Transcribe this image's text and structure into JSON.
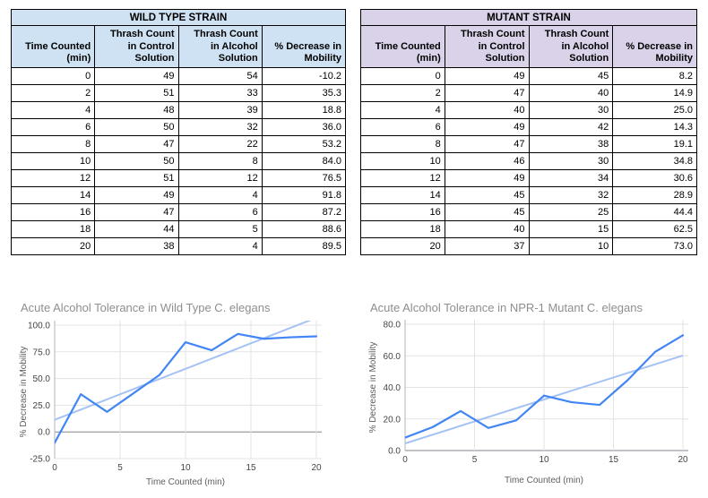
{
  "tables": [
    {
      "title": "WILD TYPE STRAIN",
      "accent_bg": "#cfe2f3",
      "columns": [
        "Time Counted\n(min)",
        "Thrash Count\nin Control\nSolution",
        "Thrash Count\nin Alcohol\nSolution",
        "% Decrease in\nMobility"
      ],
      "rows": [
        [
          "0",
          "49",
          "54",
          "-10.2"
        ],
        [
          "2",
          "51",
          "33",
          "35.3"
        ],
        [
          "4",
          "48",
          "39",
          "18.8"
        ],
        [
          "6",
          "50",
          "32",
          "36.0"
        ],
        [
          "8",
          "47",
          "22",
          "53.2"
        ],
        [
          "10",
          "50",
          "8",
          "84.0"
        ],
        [
          "12",
          "51",
          "12",
          "76.5"
        ],
        [
          "14",
          "49",
          "4",
          "91.8"
        ],
        [
          "16",
          "47",
          "6",
          "87.2"
        ],
        [
          "18",
          "44",
          "5",
          "88.6"
        ],
        [
          "20",
          "38",
          "4",
          "89.5"
        ]
      ]
    },
    {
      "title": "MUTANT STRAIN",
      "accent_bg": "#d9d2e9",
      "columns": [
        "Time Counted\n(min)",
        "Thrash Count\nin Control\nSolution",
        "Thrash Count\nin Alcohol\nSolution",
        "% Decrease in\nMobility"
      ],
      "rows": [
        [
          "0",
          "49",
          "45",
          "8.2"
        ],
        [
          "2",
          "47",
          "40",
          "14.9"
        ],
        [
          "4",
          "40",
          "30",
          "25.0"
        ],
        [
          "6",
          "49",
          "42",
          "14.3"
        ],
        [
          "8",
          "47",
          "38",
          "19.1"
        ],
        [
          "10",
          "46",
          "30",
          "34.8"
        ],
        [
          "12",
          "49",
          "34",
          "30.6"
        ],
        [
          "14",
          "45",
          "32",
          "28.9"
        ],
        [
          "16",
          "45",
          "25",
          "44.4"
        ],
        [
          "18",
          "40",
          "15",
          "62.5"
        ],
        [
          "20",
          "37",
          "10",
          "73.0"
        ]
      ]
    }
  ],
  "chart_data": [
    {
      "type": "line",
      "title": "Acute Alcohol Tolerance in Wild Type C. elegans",
      "xlabel": "Time Counted (min)",
      "ylabel": "% Decrease in Mobility",
      "x": [
        0,
        2,
        4,
        6,
        8,
        10,
        12,
        14,
        16,
        18,
        20
      ],
      "series": [
        {
          "name": "% Decrease in Mobility",
          "values": [
            -10.2,
            35.3,
            18.8,
            36.0,
            53.2,
            84.0,
            76.5,
            91.8,
            87.2,
            88.6,
            89.5
          ]
        }
      ],
      "trendline": {
        "x": [
          0,
          20
        ],
        "y": [
          11.3,
          106.9
        ]
      },
      "xlim": [
        0,
        20
      ],
      "ylim": [
        -25,
        100
      ],
      "xticks": [
        "0",
        "5",
        "10",
        "15",
        "20"
      ],
      "yticks": [
        "-25.0",
        "0.0",
        "25.0",
        "50.0",
        "75.0",
        "100.0"
      ],
      "baseline": 0,
      "grid": true,
      "legend": "none",
      "series_color": "#4285f4",
      "trend_color": "#a4c2f4"
    },
    {
      "type": "line",
      "title": "Acute Alcohol Tolerance in NPR-1 Mutant C. elegans",
      "xlabel": "Time Counted (min)",
      "ylabel": "% Decrease in Mobility",
      "x": [
        0,
        2,
        4,
        6,
        8,
        10,
        12,
        14,
        16,
        18,
        20
      ],
      "series": [
        {
          "name": "% Decrease in Mobility",
          "values": [
            8.2,
            14.9,
            25.0,
            14.3,
            19.1,
            34.8,
            30.6,
            28.9,
            44.4,
            62.5,
            73.0
          ]
        }
      ],
      "trendline": {
        "x": [
          0,
          20
        ],
        "y": [
          4.5,
          60.2
        ]
      },
      "xlim": [
        0,
        20
      ],
      "ylim": [
        0,
        80
      ],
      "xticks": [
        "0",
        "5",
        "10",
        "15",
        "20"
      ],
      "yticks": [
        "0.0",
        "20.0",
        "40.0",
        "60.0",
        "80.0"
      ],
      "baseline": 0,
      "grid": true,
      "legend": "none",
      "series_color": "#4285f4",
      "trend_color": "#a4c2f4"
    }
  ]
}
